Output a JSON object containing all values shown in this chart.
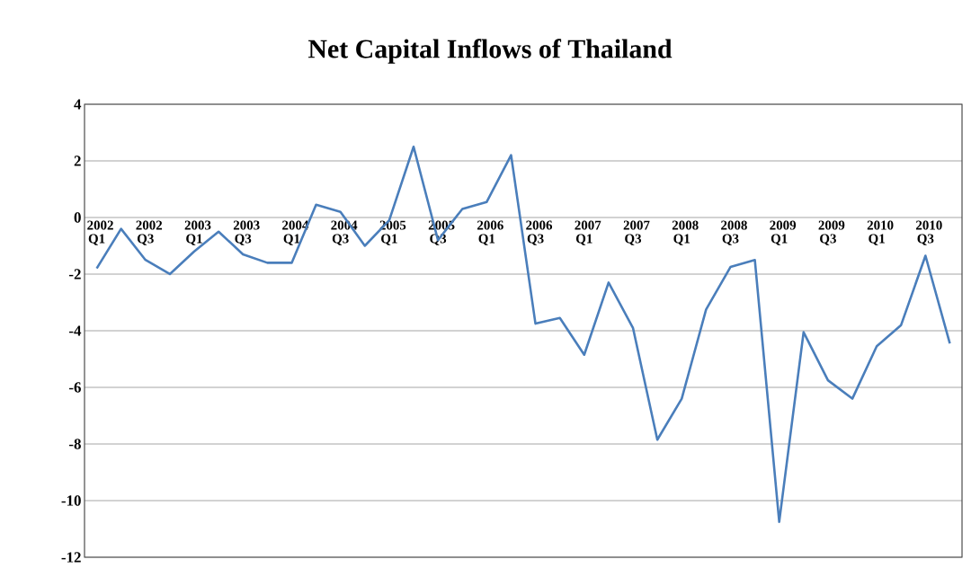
{
  "chart_data": {
    "type": "line",
    "title": "Net Capital Inflows of Thailand",
    "categories": [
      "2002 Q1",
      null,
      "2002 Q3",
      null,
      "2003 Q1",
      null,
      "2003 Q3",
      null,
      "2004 Q1",
      null,
      "2004 Q3",
      null,
      "2005 Q1",
      null,
      "2005 Q3",
      null,
      "2006 Q1",
      null,
      "2006 Q3",
      null,
      "2007 Q1",
      null,
      "2007 Q3",
      null,
      "2008 Q1",
      null,
      "2008 Q3",
      null,
      "2009 Q1",
      null,
      "2009 Q3",
      null,
      "2010 Q1",
      null,
      "2010 Q3",
      null
    ],
    "series": [
      {
        "color": "#4a7ebb",
        "values": [
          -1.8,
          -0.4,
          -1.5,
          -2.0,
          -1.2,
          -0.5,
          -1.3,
          -1.6,
          -1.6,
          0.45,
          0.2,
          -1.0,
          -0.1,
          2.5,
          -0.8,
          0.3,
          0.55,
          2.2,
          -3.75,
          -3.55,
          -4.85,
          -2.3,
          -3.9,
          -7.85,
          -6.4,
          -3.25,
          -1.75,
          -1.5,
          -10.75,
          -4.05,
          -5.75,
          -6.4,
          -4.55,
          -3.8,
          -1.35,
          -4.45
        ]
      }
    ],
    "ylim": [
      -12,
      4
    ],
    "yticks": [
      -12,
      -10,
      -8,
      -6,
      -4,
      -2,
      0,
      2,
      4
    ],
    "grid": "y",
    "marker": "none",
    "line_style": "solid"
  }
}
